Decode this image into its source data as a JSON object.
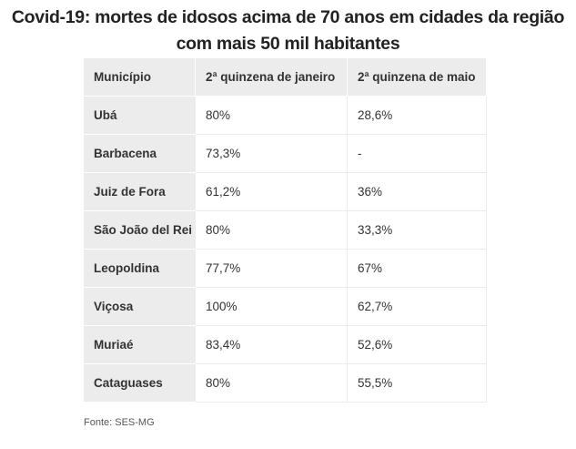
{
  "title": "Covid-19: mortes de idosos acima de 70 anos em cidades da região com mais 50 mil habitantes",
  "chart_data": {
    "type": "table",
    "title": "Covid-19: mortes de idosos acima de 70 anos em cidades da região com mais 50 mil habitantes",
    "columns": [
      "Município",
      "2ª quinzena de janeiro",
      "2ª quinzena de maio"
    ],
    "rows": [
      [
        "Ubá",
        "80%",
        "28,6%"
      ],
      [
        "Barbacena",
        "73,3%",
        "-"
      ],
      [
        "Juiz de Fora",
        "61,2%",
        "36%"
      ],
      [
        "São João del Rei",
        "80%",
        "33,3%"
      ],
      [
        "Leopoldina",
        "77,7%",
        "67%"
      ],
      [
        "Viçosa",
        "100%",
        "62,7%"
      ],
      [
        "Muriaé",
        "83,4%",
        "52,6%"
      ],
      [
        "Cataguases",
        "80%",
        "55,5%"
      ]
    ]
  },
  "source": "Fonte: SES-MG"
}
